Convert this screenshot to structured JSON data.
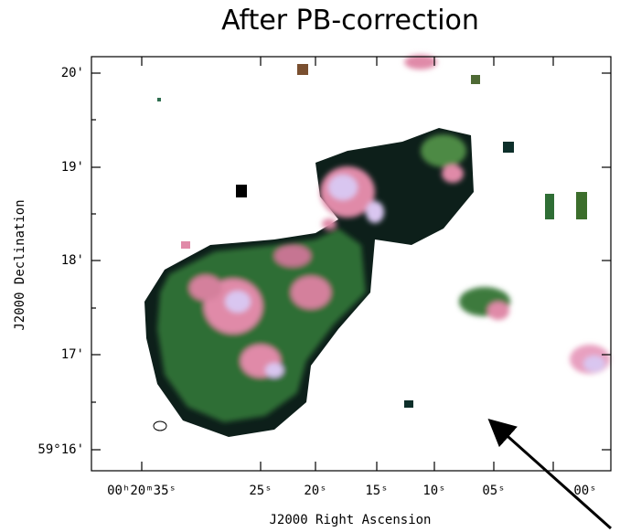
{
  "title": "After PB-correction",
  "x_axis": {
    "label": "J2000 Right Ascension",
    "ticks": [
      "00ʰ20ᵐ35ˢ",
      "25ˢ",
      "20ˢ",
      "15ˢ",
      "10ˢ",
      "05ˢ",
      "00ˢ"
    ]
  },
  "y_axis": {
    "label": "J2000 Declination",
    "ticks": [
      "20'",
      "19'",
      "18'",
      "17'",
      "59°16'"
    ]
  }
}
